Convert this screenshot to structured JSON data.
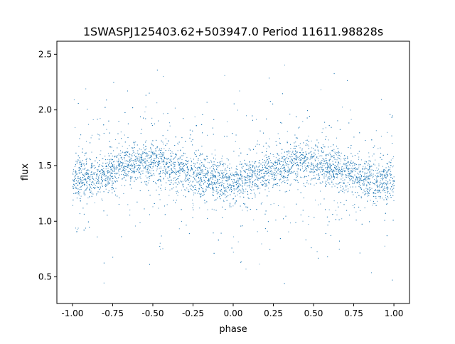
{
  "chart_data": {
    "type": "scatter",
    "title": "1SWASPJ125403.62+503947.0 Period 11611.98828s",
    "xlabel": "phase",
    "ylabel": "flux",
    "xlim": [
      -1.097,
      1.097
    ],
    "ylim": [
      0.261,
      2.617
    ],
    "xticks": [
      "-1.00",
      "-0.75",
      "-0.50",
      "-0.25",
      "0.00",
      "0.25",
      "0.50",
      "0.75",
      "1.00"
    ],
    "yticks": [
      "0.5",
      "1.0",
      "1.5",
      "2.0",
      "2.5"
    ],
    "grid": false,
    "marker_color": "#1f77b4",
    "binned_trend": {
      "phase": [
        -1.0,
        -0.875,
        -0.75,
        -0.625,
        -0.5,
        -0.375,
        -0.25,
        -0.125,
        0.0,
        0.125,
        0.25,
        0.375,
        0.5,
        0.625,
        0.75,
        0.875,
        1.0
      ],
      "flux": [
        1.37,
        1.4,
        1.47,
        1.53,
        1.53,
        1.48,
        1.42,
        1.37,
        1.35,
        1.4,
        1.47,
        1.53,
        1.53,
        1.48,
        1.42,
        1.37,
        1.35
      ]
    }
  }
}
